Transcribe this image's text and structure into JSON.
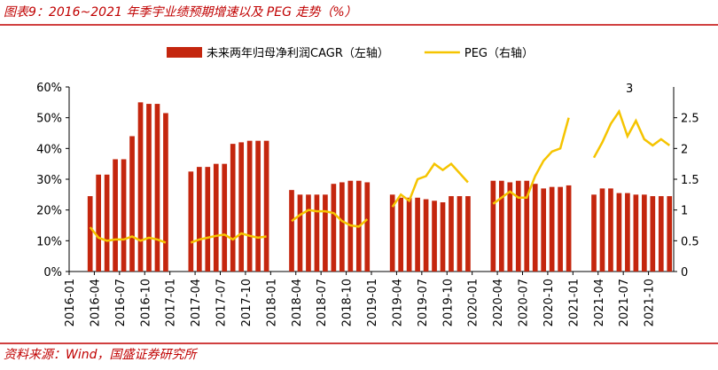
{
  "chart_data": {
    "type": "bar-line",
    "title": "图表9：2016~2021 年季宇业绩预期增速以及 PEG 走势（%）",
    "source": "资料来源：Wind，国盛证券研究所",
    "annotation": "3",
    "categories": [
      "2016-01",
      null,
      null,
      "2016-04",
      null,
      null,
      "2016-07",
      null,
      null,
      "2016-10",
      null,
      null,
      "2017-01",
      null,
      null,
      "2017-04",
      null,
      null,
      "2017-07",
      null,
      null,
      "2017-10",
      null,
      null,
      "2018-01",
      null,
      null,
      "2018-04",
      null,
      null,
      "2018-07",
      null,
      null,
      "2018-10",
      null,
      null,
      "2019-01",
      null,
      null,
      "2019-04",
      null,
      null,
      "2019-07",
      null,
      null,
      "2019-10",
      null,
      null,
      "2020-01",
      null,
      null,
      "2020-04",
      null,
      null,
      "2020-07",
      null,
      null,
      "2020-10",
      null,
      null,
      "2021-01",
      null,
      null,
      "2021-04",
      null,
      null,
      "2021-07",
      null,
      null,
      "2021-10",
      null,
      null
    ],
    "series": [
      {
        "name": "未来两年归母净利润CAGR（左轴）",
        "type": "bar",
        "color": "#c4260e",
        "values": [
          null,
          null,
          24.5,
          31.5,
          31.5,
          36.5,
          36.5,
          44,
          55,
          54.5,
          54.5,
          51.5,
          null,
          null,
          32.5,
          34,
          34,
          35,
          35,
          41.5,
          42,
          42.5,
          42.5,
          42.5,
          null,
          null,
          26.5,
          25,
          25,
          25,
          25,
          28.5,
          29,
          29.5,
          29.5,
          29,
          null,
          null,
          25,
          24,
          24,
          24,
          23.5,
          23,
          22.5,
          24.5,
          24.5,
          24.5,
          null,
          null,
          29.5,
          29.5,
          29,
          29.5,
          29.5,
          28.5,
          27,
          27.5,
          27.5,
          28,
          null,
          null,
          25,
          27,
          27,
          25.5,
          25.5,
          25,
          25,
          24.5,
          24.5,
          24.5
        ]
      },
      {
        "name": "PEG（右轴）",
        "type": "line",
        "axis": "y2",
        "color": "#f5c400",
        "values": [
          null,
          null,
          0.72,
          0.55,
          0.5,
          0.52,
          0.52,
          0.57,
          0.5,
          0.55,
          0.52,
          0.47,
          null,
          null,
          0.47,
          0.52,
          0.55,
          0.58,
          0.6,
          0.52,
          0.62,
          0.58,
          0.55,
          0.57,
          null,
          null,
          0.82,
          0.92,
          1.0,
          0.98,
          0.98,
          0.95,
          0.82,
          0.75,
          0.73,
          0.85,
          null,
          null,
          1.05,
          1.25,
          1.15,
          1.5,
          1.55,
          1.75,
          1.65,
          1.75,
          1.6,
          1.45,
          null,
          null,
          1.1,
          1.2,
          1.3,
          1.2,
          1.2,
          1.55,
          1.8,
          1.95,
          2.0,
          2.5,
          null,
          null,
          1.85,
          2.1,
          2.4,
          2.6,
          2.2,
          2.45,
          2.15,
          2.05,
          2.15,
          2.05
        ]
      }
    ],
    "ylim": [
      0,
      60
    ],
    "yticks": [
      {
        "value": 0,
        "label": "0%"
      },
      {
        "value": 10,
        "label": "10%"
      },
      {
        "value": 20,
        "label": "20%"
      },
      {
        "value": 30,
        "label": "30%"
      },
      {
        "value": 40,
        "label": "40%"
      },
      {
        "value": 50,
        "label": "50%"
      },
      {
        "value": 60,
        "label": "60%"
      }
    ],
    "y2lim": [
      0,
      3
    ],
    "y2ticks": [
      0,
      0.5,
      1,
      1.5,
      2,
      2.5
    ]
  }
}
